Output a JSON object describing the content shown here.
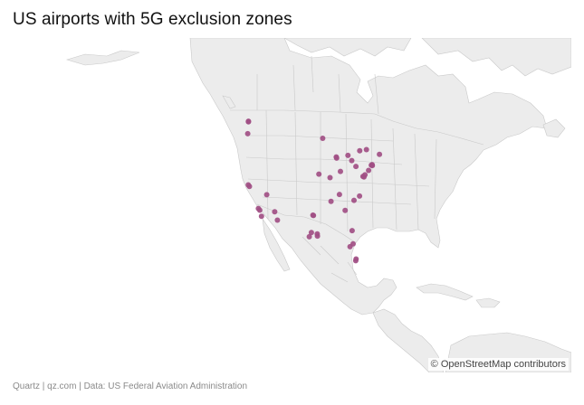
{
  "title": "US airports with 5G exclusion zones",
  "attribution": "© OpenStreetMap contributors",
  "footer": {
    "brand": "Quartz",
    "site": "qz.com",
    "source": "Data: US Federal Aviation Administration",
    "separator": " | "
  },
  "colors": {
    "marker": "#a14f84",
    "land": "#ececec",
    "water": "#ffffff",
    "border": "#c9c9c9"
  },
  "map_data": {
    "region": "North America",
    "marker_type": "airport",
    "airports": [
      {
        "lat": 47.45,
        "lon": -122.31
      },
      {
        "lat": 47.53,
        "lon": -122.3
      },
      {
        "lat": 45.59,
        "lon": -122.6
      },
      {
        "lat": 37.62,
        "lon": -122.38
      },
      {
        "lat": 37.36,
        "lon": -121.93
      },
      {
        "lat": 36.08,
        "lon": -115.15
      },
      {
        "lat": 33.94,
        "lon": -118.41
      },
      {
        "lat": 33.68,
        "lon": -117.87
      },
      {
        "lat": 32.73,
        "lon": -117.19
      },
      {
        "lat": 33.43,
        "lon": -112.01
      },
      {
        "lat": 32.12,
        "lon": -110.94
      },
      {
        "lat": 32.9,
        "lon": -97.04
      },
      {
        "lat": 32.85,
        "lon": -96.85
      },
      {
        "lat": 30.19,
        "lon": -97.67
      },
      {
        "lat": 29.53,
        "lon": -98.47
      },
      {
        "lat": 29.98,
        "lon": -95.34
      },
      {
        "lat": 29.65,
        "lon": -95.28
      },
      {
        "lat": 39.3,
        "lon": -94.71
      },
      {
        "lat": 44.88,
        "lon": -93.22
      },
      {
        "lat": 41.97,
        "lon": -87.91
      },
      {
        "lat": 41.79,
        "lon": -87.75
      },
      {
        "lat": 38.75,
        "lon": -90.37
      },
      {
        "lat": 39.72,
        "lon": -86.29
      },
      {
        "lat": 42.21,
        "lon": -83.35
      },
      {
        "lat": 41.41,
        "lon": -81.85
      },
      {
        "lat": 40.49,
        "lon": -80.23
      },
      {
        "lat": 36.12,
        "lon": -86.68
      },
      {
        "lat": 35.04,
        "lon": -89.98
      },
      {
        "lat": 33.64,
        "lon": -84.43
      },
      {
        "lat": 35.21,
        "lon": -80.94
      },
      {
        "lat": 35.88,
        "lon": -78.79
      },
      {
        "lat": 38.85,
        "lon": -77.04
      },
      {
        "lat": 38.95,
        "lon": -77.45
      },
      {
        "lat": 39.18,
        "lon": -76.67
      },
      {
        "lat": 39.87,
        "lon": -75.24
      },
      {
        "lat": 40.69,
        "lon": -74.17
      },
      {
        "lat": 40.64,
        "lon": -73.78
      },
      {
        "lat": 40.78,
        "lon": -73.87
      },
      {
        "lat": 42.36,
        "lon": -71.01
      },
      {
        "lat": 43.11,
        "lon": -76.11
      },
      {
        "lat": 42.94,
        "lon": -78.73
      },
      {
        "lat": 28.43,
        "lon": -81.31
      },
      {
        "lat": 27.98,
        "lon": -82.53
      },
      {
        "lat": 26.07,
        "lon": -80.15
      },
      {
        "lat": 25.8,
        "lon": -80.29
      },
      {
        "lat": 30.49,
        "lon": -81.69
      }
    ]
  }
}
